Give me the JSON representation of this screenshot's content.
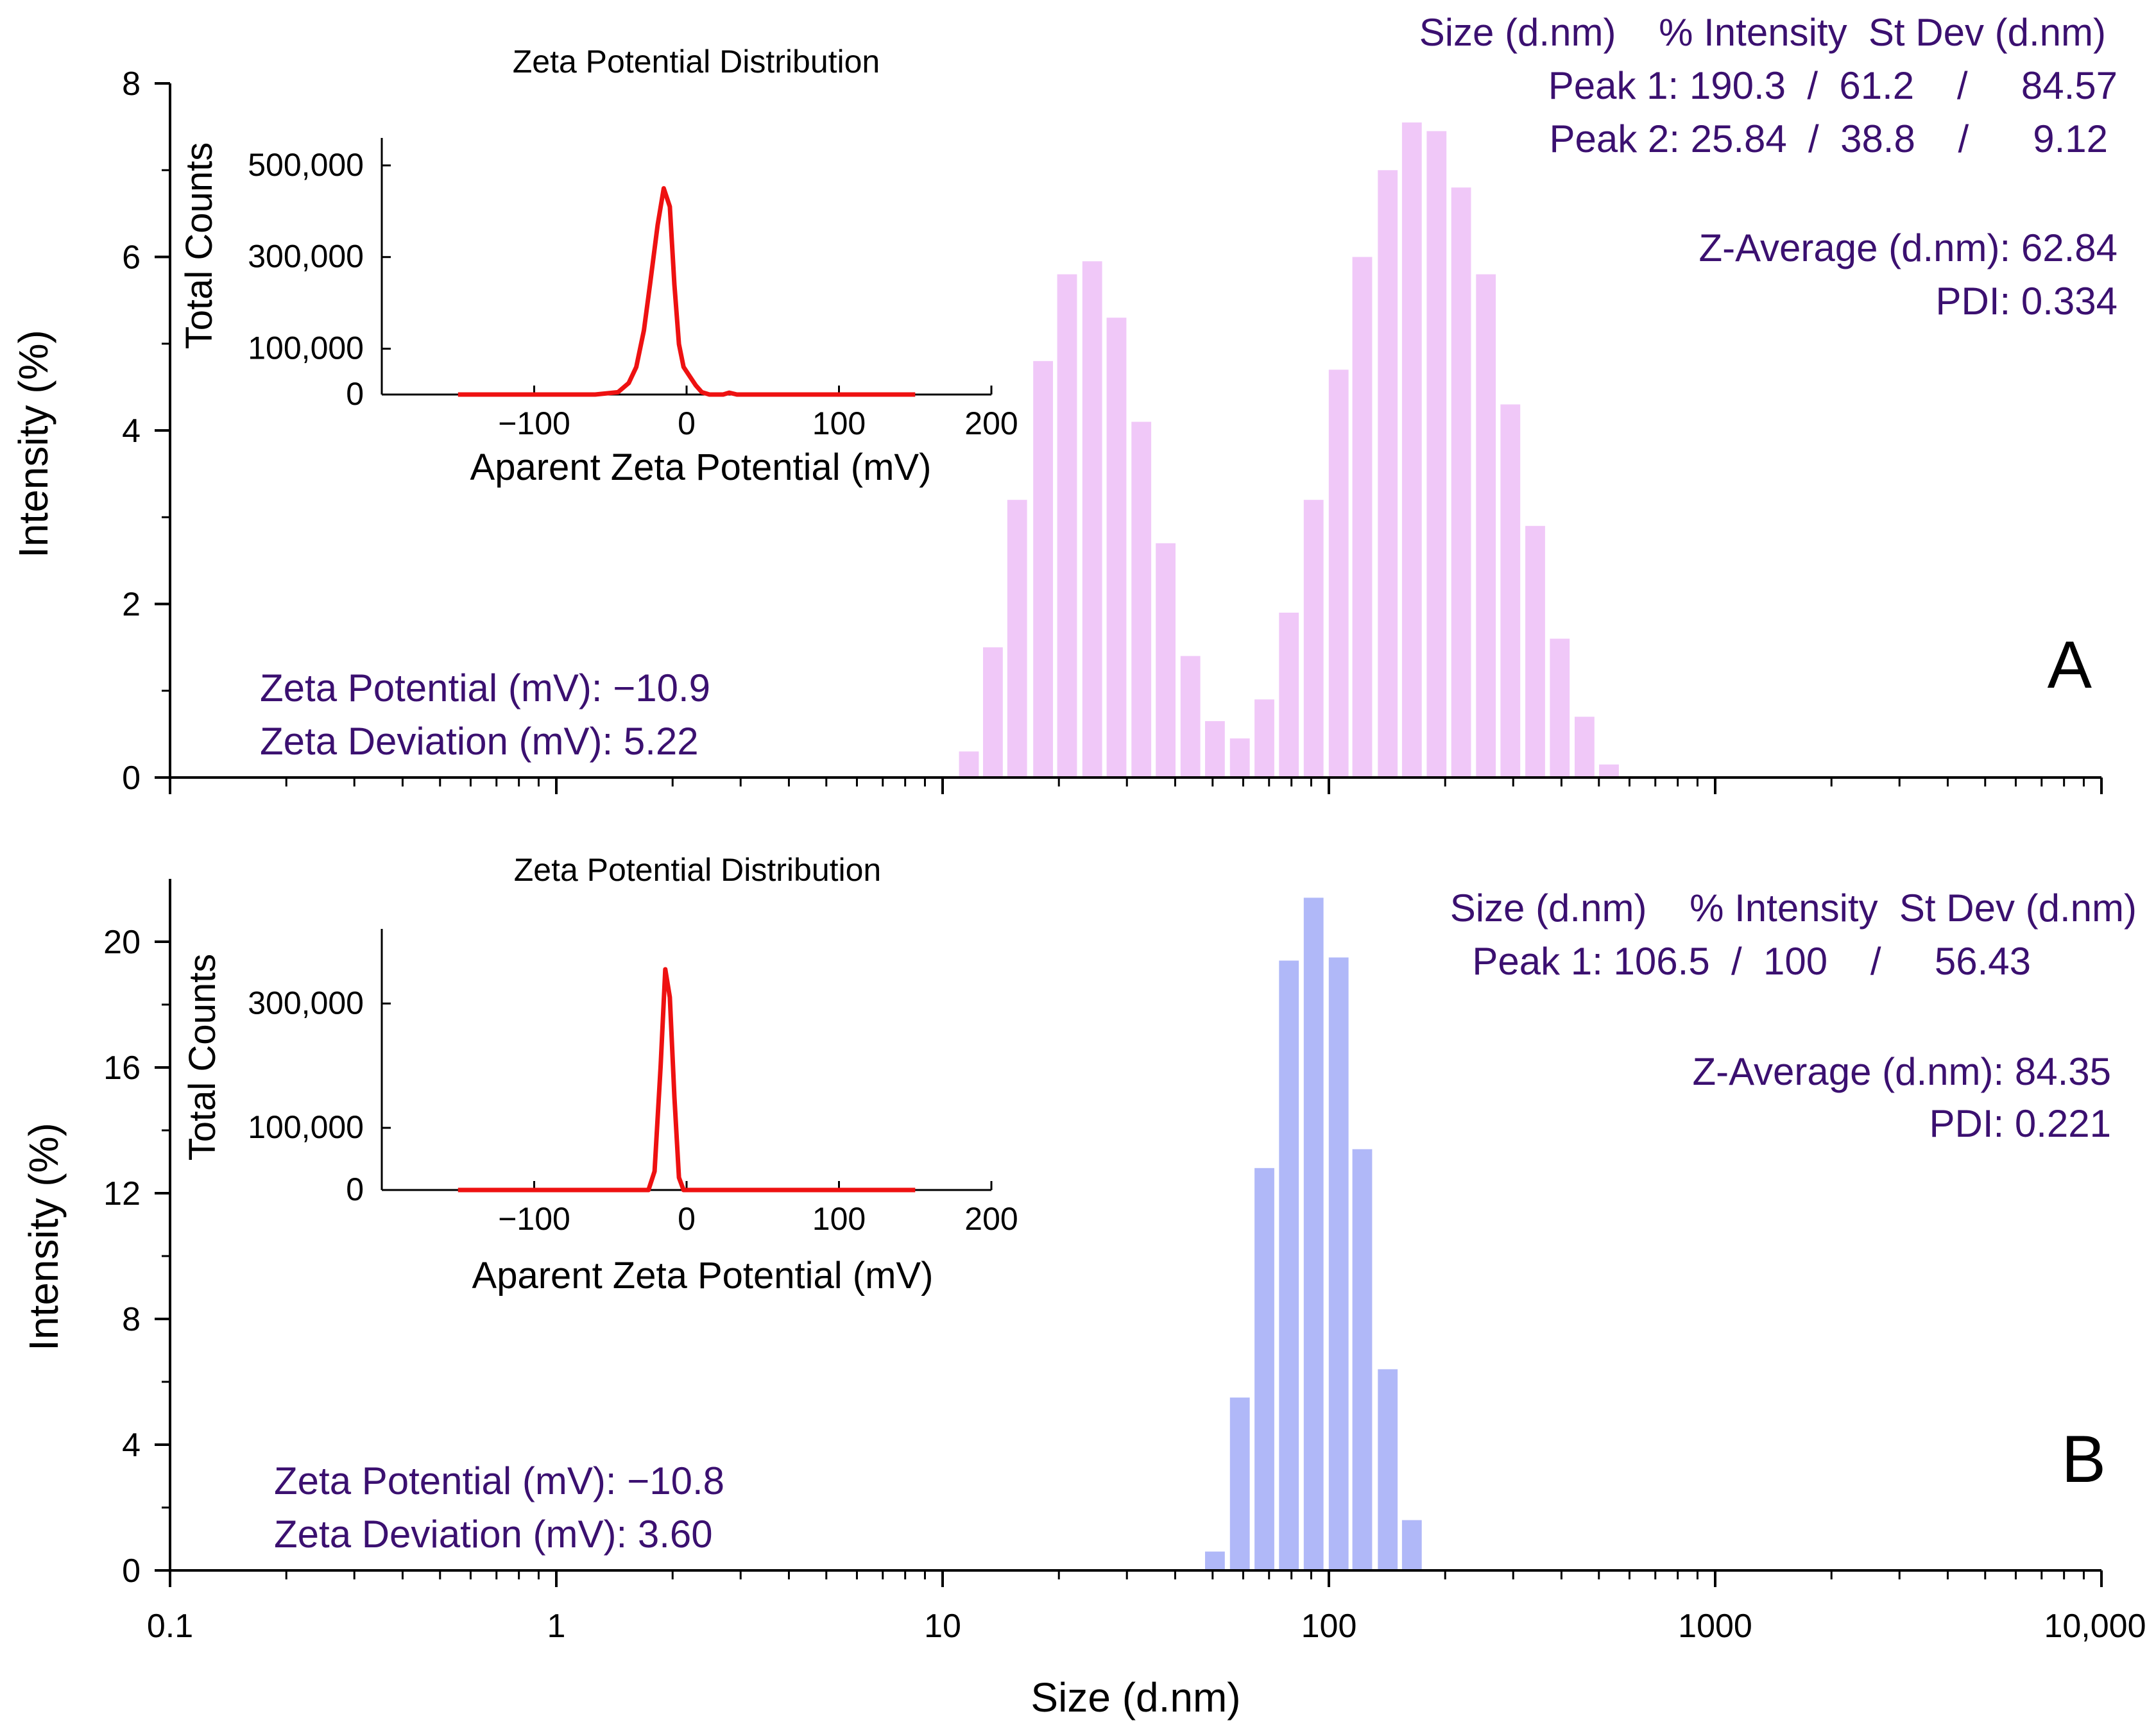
{
  "colors": {
    "panel_a_bars": "#f0c8f8",
    "panel_b_bars": "#b0b8f8",
    "inset_line": "#ee1111",
    "annotation_text": "#3b1070",
    "axis": "#000000"
  },
  "shared_x_axis": {
    "label": "Size (d.nm)",
    "scale": "log",
    "range": [
      0.1,
      10000
    ],
    "tick_labels": [
      "0.1",
      "1",
      "10",
      "100",
      "1000",
      "10,000"
    ],
    "tick_values": [
      0.1,
      1,
      10,
      100,
      1000,
      10000
    ]
  },
  "chart_data": [
    {
      "type": "bar",
      "panel": "A",
      "ylabel": "Intensity (%)",
      "ylim": [
        0,
        8
      ],
      "y_ticks": [
        0,
        2,
        4,
        6,
        8
      ],
      "y_tick_labels": [
        "0",
        "2",
        "4",
        "6",
        "8"
      ],
      "bars": [
        {
          "x": 11.7,
          "y": 0.3
        },
        {
          "x": 13.5,
          "y": 1.5
        },
        {
          "x": 15.6,
          "y": 3.2
        },
        {
          "x": 18.2,
          "y": 4.8
        },
        {
          "x": 21.0,
          "y": 5.8
        },
        {
          "x": 24.4,
          "y": 5.95
        },
        {
          "x": 28.2,
          "y": 5.3
        },
        {
          "x": 32.7,
          "y": 4.1
        },
        {
          "x": 37.8,
          "y": 2.7
        },
        {
          "x": 43.8,
          "y": 1.4
        },
        {
          "x": 50.7,
          "y": 0.65
        },
        {
          "x": 58.8,
          "y": 0.45
        },
        {
          "x": 68.1,
          "y": 0.9
        },
        {
          "x": 78.8,
          "y": 1.9
        },
        {
          "x": 91.3,
          "y": 3.2
        },
        {
          "x": 106.0,
          "y": 4.7
        },
        {
          "x": 122.0,
          "y": 6.0
        },
        {
          "x": 142.0,
          "y": 7.0
        },
        {
          "x": 164.0,
          "y": 7.55
        },
        {
          "x": 190.0,
          "y": 7.45
        },
        {
          "x": 220.0,
          "y": 6.8
        },
        {
          "x": 255.0,
          "y": 5.8
        },
        {
          "x": 295.0,
          "y": 4.3
        },
        {
          "x": 342.0,
          "y": 2.9
        },
        {
          "x": 396.0,
          "y": 1.6
        },
        {
          "x": 459.0,
          "y": 0.7
        },
        {
          "x": 531.0,
          "y": 0.15
        }
      ],
      "peaks_header": "Size (d.nm)    % Intensity  St Dev (d.nm)",
      "peak_lines": [
        "Peak 1: 190.3  /  61.2    /     84.57",
        "Peak 2: 25.84  /  38.8    /      9.12"
      ],
      "z_average": "Z-Average (d.nm): 62.84",
      "pdi": "PDI: 0.334",
      "zeta_potential": "Zeta Potential (mV): −10.9",
      "zeta_deviation": "Zeta Deviation (mV): 5.22",
      "panel_letter": "A",
      "inset": {
        "type": "line",
        "title": "Zeta Potential Distribution",
        "xlabel": "Aparent Zeta Potential (mV)",
        "ylabel": "Total Counts",
        "xlim": [
          -200,
          200
        ],
        "ylim": [
          0,
          560000
        ],
        "x_ticks": [
          -100,
          0,
          100,
          200
        ],
        "x_tick_labels": [
          "−100",
          "0",
          "100",
          "200"
        ],
        "y_ticks": [
          0,
          100000,
          300000,
          500000
        ],
        "y_tick_labels": [
          "0",
          "100,000",
          "300,000",
          "500,000"
        ],
        "series": [
          {
            "x": -150,
            "y": 0
          },
          {
            "x": -60,
            "y": 0
          },
          {
            "x": -45,
            "y": 5000
          },
          {
            "x": -38,
            "y": 25000
          },
          {
            "x": -33,
            "y": 60000
          },
          {
            "x": -28,
            "y": 140000
          },
          {
            "x": -24,
            "y": 240000
          },
          {
            "x": -19,
            "y": 370000
          },
          {
            "x": -15,
            "y": 450000
          },
          {
            "x": -11,
            "y": 410000
          },
          {
            "x": -8,
            "y": 240000
          },
          {
            "x": -5,
            "y": 110000
          },
          {
            "x": -2,
            "y": 60000
          },
          {
            "x": 2,
            "y": 40000
          },
          {
            "x": 6,
            "y": 20000
          },
          {
            "x": 10,
            "y": 5000
          },
          {
            "x": 15,
            "y": 0
          },
          {
            "x": 24,
            "y": 0
          },
          {
            "x": 28,
            "y": 4000
          },
          {
            "x": 33,
            "y": 0
          },
          {
            "x": 150,
            "y": 0
          }
        ]
      }
    },
    {
      "type": "bar",
      "panel": "B",
      "ylabel": "Intensity (%)",
      "ylim": [
        0,
        22
      ],
      "y_ticks": [
        0,
        4,
        8,
        12,
        16,
        20
      ],
      "y_tick_labels": [
        "0",
        "4",
        "8",
        "12",
        "16",
        "20"
      ],
      "bars": [
        {
          "x": 50.7,
          "y": 0.6
        },
        {
          "x": 58.8,
          "y": 5.5
        },
        {
          "x": 68.1,
          "y": 12.8
        },
        {
          "x": 78.8,
          "y": 19.4
        },
        {
          "x": 91.3,
          "y": 21.4
        },
        {
          "x": 106.0,
          "y": 19.5
        },
        {
          "x": 122.0,
          "y": 13.4
        },
        {
          "x": 142.0,
          "y": 6.4
        },
        {
          "x": 164.0,
          "y": 1.6
        }
      ],
      "peaks_header": "Size (d.nm)    % Intensity  St Dev (d.nm)",
      "peak_lines": [
        "Peak 1: 106.5  /  100    /     56.43"
      ],
      "z_average": "Z-Average (d.nm): 84.35",
      "pdi": "PDI: 0.221",
      "zeta_potential": "Zeta Potential (mV): −10.8",
      "zeta_deviation": "Zeta Deviation (mV): 3.60",
      "panel_letter": "B",
      "inset": {
        "type": "line",
        "title": "Zeta Potential Distribution",
        "xlabel": "Aparent Zeta Potential (mV)",
        "ylabel": "Total Counts",
        "xlim": [
          -200,
          200
        ],
        "ylim": [
          0,
          420000
        ],
        "x_ticks": [
          -100,
          0,
          100,
          200
        ],
        "x_tick_labels": [
          "−100",
          "0",
          "100",
          "200"
        ],
        "y_ticks": [
          0,
          100000,
          300000
        ],
        "y_tick_labels": [
          "0",
          "100,000",
          "300,000"
        ],
        "series": [
          {
            "x": -150,
            "y": 0
          },
          {
            "x": -25,
            "y": 0
          },
          {
            "x": -21,
            "y": 30000
          },
          {
            "x": -17,
            "y": 200000
          },
          {
            "x": -14,
            "y": 355000
          },
          {
            "x": -11,
            "y": 310000
          },
          {
            "x": -8,
            "y": 150000
          },
          {
            "x": -5,
            "y": 20000
          },
          {
            "x": -2,
            "y": 0
          },
          {
            "x": 150,
            "y": 0
          }
        ]
      }
    }
  ]
}
